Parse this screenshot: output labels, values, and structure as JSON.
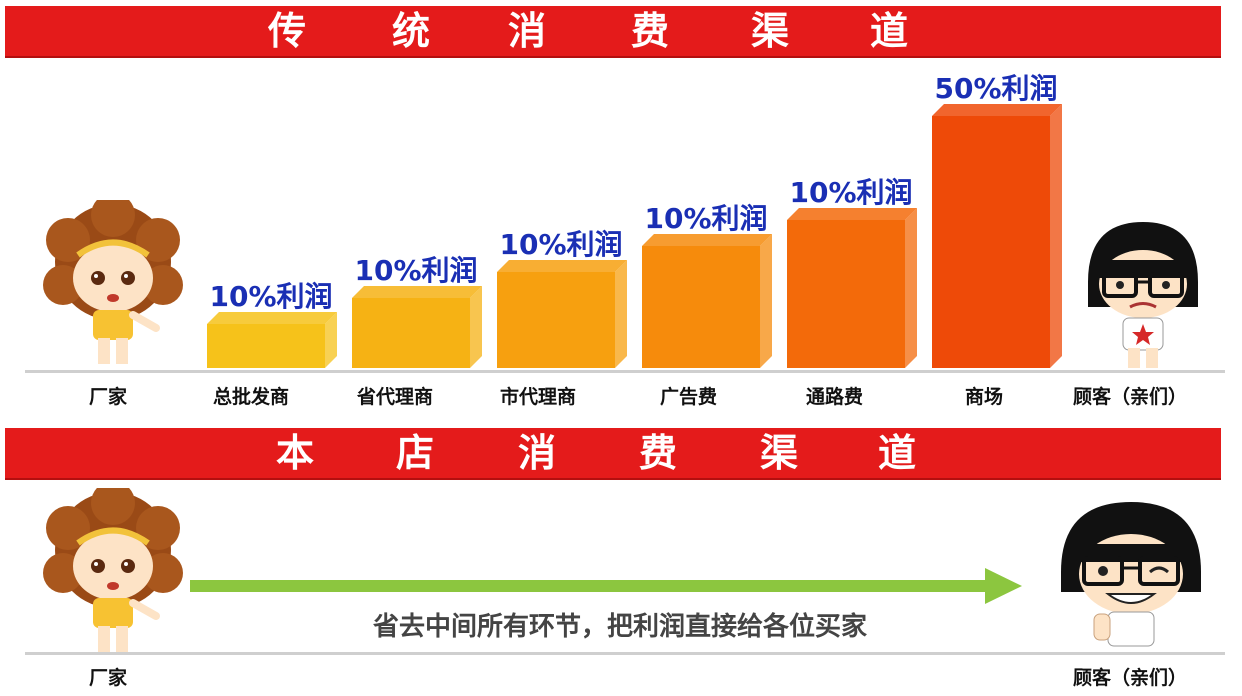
{
  "top_section": {
    "title_chars": [
      "传",
      "统",
      "消",
      "费",
      "渠",
      "道"
    ],
    "stages": [
      "厂家",
      "总批发商",
      "省代理商",
      "市代理商",
      "广告费",
      "通路费",
      "商场",
      "顾客（亲们）"
    ]
  },
  "bottom_section": {
    "title_chars": [
      "本",
      "店",
      "消",
      "费",
      "渠",
      "道"
    ],
    "left_label": "厂家",
    "right_label": "顾客（亲们）",
    "arrow_caption": "省去中间所有环节，把利润直接给各位买家"
  },
  "chart_data": {
    "type": "bar",
    "categories": [
      "总批发商",
      "省代理商",
      "市代理商",
      "广告费",
      "通路费",
      "商场"
    ],
    "values": [
      10,
      10,
      10,
      10,
      10,
      50
    ],
    "data_labels": [
      "10%利润",
      "10%利润",
      "10%利润",
      "10%利润",
      "10%利润",
      "50%利润"
    ],
    "colors": [
      "#f6c21a",
      "#f6b214",
      "#f7a00f",
      "#f68b0c",
      "#f36a0a",
      "#ee4a08"
    ],
    "label_color": "#1a2fb4"
  },
  "colors": {
    "banner": "#e41b1b",
    "arrow": "#8cc63f"
  },
  "icons": {
    "left_figure": "cartoon-girl-afro-icon",
    "right_figure_top": "cartoon-girl-glasses-crying-icon",
    "right_figure_bottom": "cartoon-girl-glasses-happy-icon"
  }
}
